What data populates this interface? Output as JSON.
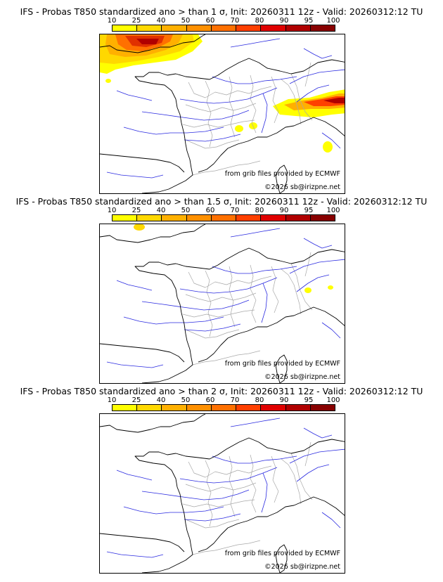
{
  "panels": [
    {
      "title": "IFS - Probas T850  standardized ano > than 1 σ, Init: 20260311 12z - Valid: 20260312:12 TU",
      "credit": "from grib files provided by ECMWF",
      "copyright": "©2026 sb@irizpne.net",
      "threshold_sigma": 1
    },
    {
      "title": "IFS - Probas T850  standardized ano > than 1.5 σ, Init: 20260311 12z - Valid: 20260312:12 TU",
      "credit": "from grib files provided by ECMWF",
      "copyright": "©2026 sb@irizpne.net",
      "threshold_sigma": 1.5
    },
    {
      "title": "IFS - Probas T850  standardized ano > than 2 σ, Init: 20260311 12z - Valid: 20260312:12 TU",
      "credit": "from grib files provided by ECMWF",
      "copyright": "©2026 sb@irizpne.net",
      "threshold_sigma": 2
    }
  ],
  "colorbar": {
    "labels": [
      "10",
      "25",
      "40",
      "50",
      "60",
      "70",
      "80",
      "90",
      "95",
      "100"
    ],
    "colors": [
      "#ffff00",
      "#ffd800",
      "#ffb000",
      "#ff9000",
      "#ff7000",
      "#ff4000",
      "#e00000",
      "#b00000",
      "#880000"
    ]
  },
  "colors": {
    "coast": "#000000",
    "rivers": "#2a2ae0",
    "borders": "#a8a8a8"
  }
}
